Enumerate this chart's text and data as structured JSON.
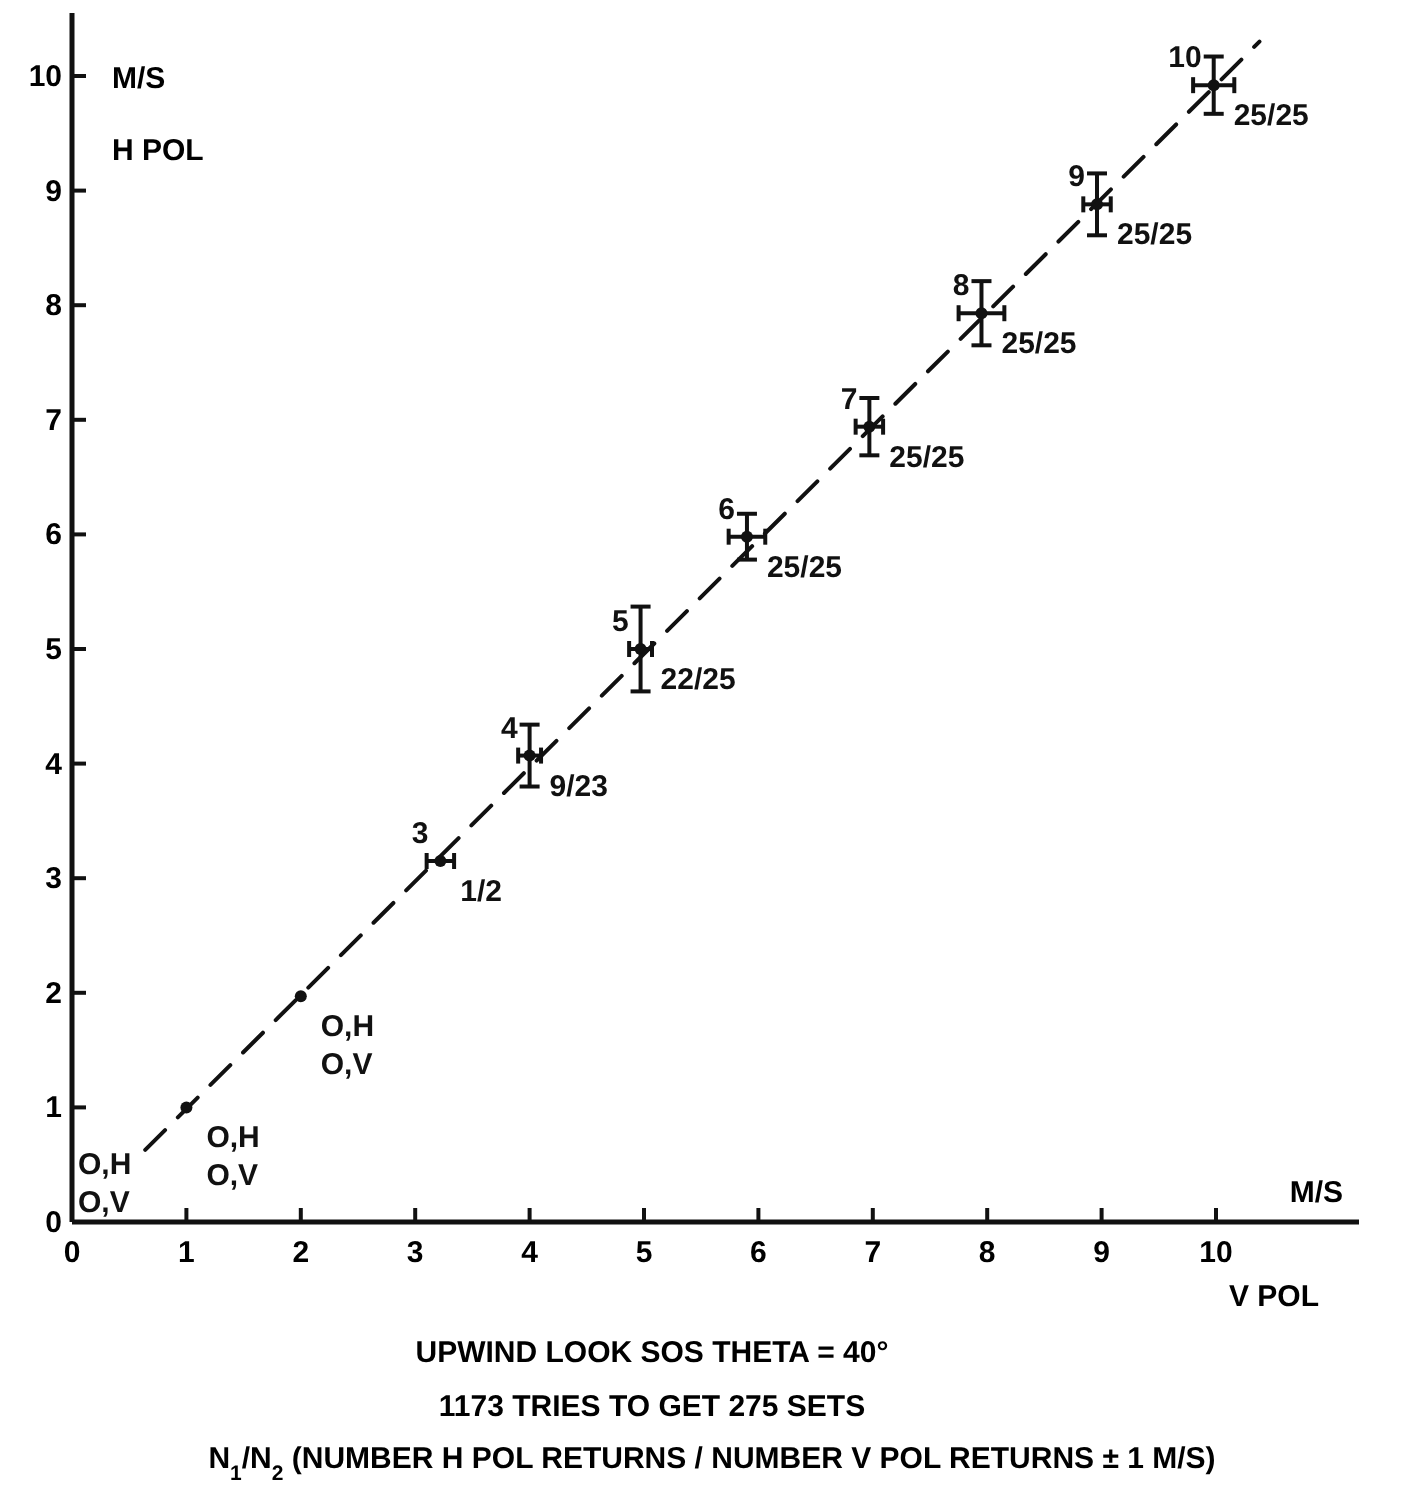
{
  "chart_data": {
    "type": "scatter",
    "title": "UPWIND LOOK   SOS   THETA = 40°",
    "subtitle": "1173 TRIES TO GET 275 SETS",
    "xlabel": "M/S\nV POL",
    "ylabel": "M/S\nH POL",
    "xlim": [
      0,
      11.25
    ],
    "ylim": [
      0,
      10.55
    ],
    "xticks": [
      0,
      1,
      2,
      3,
      4,
      5,
      6,
      7,
      8,
      9,
      10
    ],
    "yticks": [
      0,
      1,
      2,
      3,
      4,
      5,
      6,
      7,
      8,
      9,
      10
    ],
    "grid": false,
    "series": [
      {
        "color": "#111111",
        "marker": "circle",
        "x": [
          1.0,
          2.0,
          3.22,
          4.0,
          4.97,
          5.9,
          6.97,
          7.95,
          8.96,
          9.98
        ],
        "values": [
          1.0,
          1.97,
          3.15,
          4.07,
          5.0,
          5.98,
          6.94,
          7.93,
          8.88,
          9.92
        ],
        "errors": [
          null,
          null,
          null,
          0.27,
          0.37,
          0.2,
          0.25,
          0.28,
          0.27,
          0.25
        ],
        "xerrors": [
          null,
          null,
          0.12,
          0.1,
          0.1,
          0.16,
          0.12,
          0.2,
          0.12,
          0.18
        ]
      },
      {
        "type": "line",
        "color": "#111111",
        "line_style": "dashed",
        "marker": "none",
        "x": [
          0.64,
          10.38
        ],
        "values": [
          0.63,
          10.3
        ]
      }
    ],
    "annotations": [
      "O,H\nO,V",
      {
        "text": "O,H\nO,V",
        "x": 1.0,
        "y": 1.0
      },
      {
        "text": "O,H\nO,V",
        "x": 2.0,
        "y": 1.97
      },
      {
        "text": "3",
        "x": 3.22,
        "y": 3.15
      },
      {
        "text": "1/2",
        "x": 3.22,
        "y": 3.15
      },
      {
        "text": "4",
        "x": 4.0,
        "y": 4.07
      },
      {
        "text": "9/23",
        "x": 4.0,
        "y": 4.07
      },
      {
        "text": "5",
        "x": 4.97,
        "y": 5.0
      },
      {
        "text": "22/25",
        "x": 4.97,
        "y": 5.0
      },
      {
        "text": "6",
        "x": 5.9,
        "y": 5.98
      },
      {
        "text": "25/25",
        "x": 5.9,
        "y": 5.98
      },
      {
        "text": "7",
        "x": 6.97,
        "y": 6.94
      },
      {
        "text": "25/25",
        "x": 6.97,
        "y": 6.94
      },
      {
        "text": "8",
        "x": 7.95,
        "y": 7.93
      },
      {
        "text": "25/25",
        "x": 7.95,
        "y": 7.93
      },
      {
        "text": "9",
        "x": 8.96,
        "y": 8.88
      },
      {
        "text": "25/25",
        "x": 8.96,
        "y": 8.88
      },
      {
        "text": "10",
        "x": 9.98,
        "y": 9.92
      },
      {
        "text": "25/25",
        "x": 9.98,
        "y": 9.92
      },
      "N$_{1}$/N$_{2}$ (NUMBER H POL RETURNS / NUMBER V POL RETURNS ± 1 M/S)"
    ]
  }
}
